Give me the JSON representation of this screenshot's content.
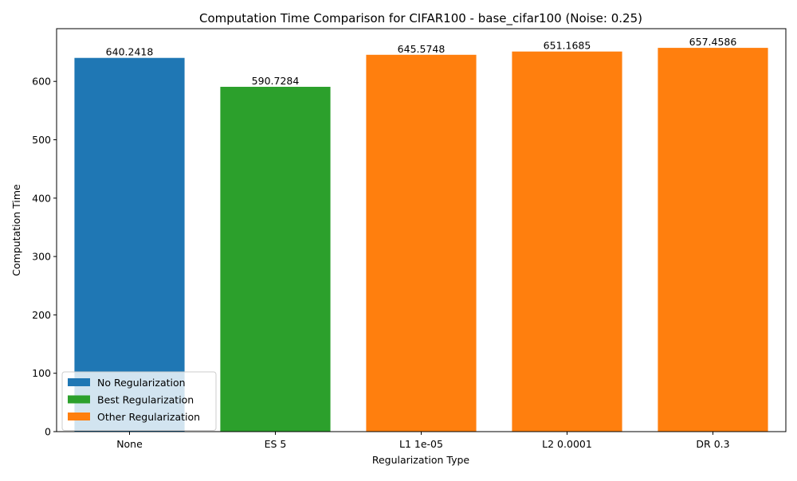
{
  "chart_data": {
    "type": "bar",
    "title": "Computation Time Comparison for CIFAR100 - base_cifar100 (Noise: 0.25)",
    "xlabel": "Regularization Type",
    "ylabel": "Computation Time",
    "categories": [
      "None",
      "ES 5",
      "L1 1e-05",
      "L2 0.0001",
      "DR 0.3"
    ],
    "values": [
      640.2418,
      590.7284,
      645.5748,
      651.1685,
      657.4586
    ],
    "value_labels": [
      "640.2418",
      "590.7284",
      "645.5748",
      "651.1685",
      "657.4586"
    ],
    "bar_groups": [
      "No Regularization",
      "Best Regularization",
      "Other Regularization",
      "Other Regularization",
      "Other Regularization"
    ],
    "ylim": [
      0,
      690.33
    ],
    "yticks": [
      0,
      100,
      200,
      300,
      400,
      500,
      600
    ],
    "ytick_labels": [
      "0",
      "100",
      "200",
      "300",
      "400",
      "500",
      "600"
    ],
    "grid": false,
    "legend": {
      "placement": "lower-left",
      "entries": [
        {
          "label": "No Regularization",
          "color": "#1f77b4"
        },
        {
          "label": "Best Regularization",
          "color": "#2ca02c"
        },
        {
          "label": "Other Regularization",
          "color": "#ff7f0e"
        }
      ]
    }
  }
}
